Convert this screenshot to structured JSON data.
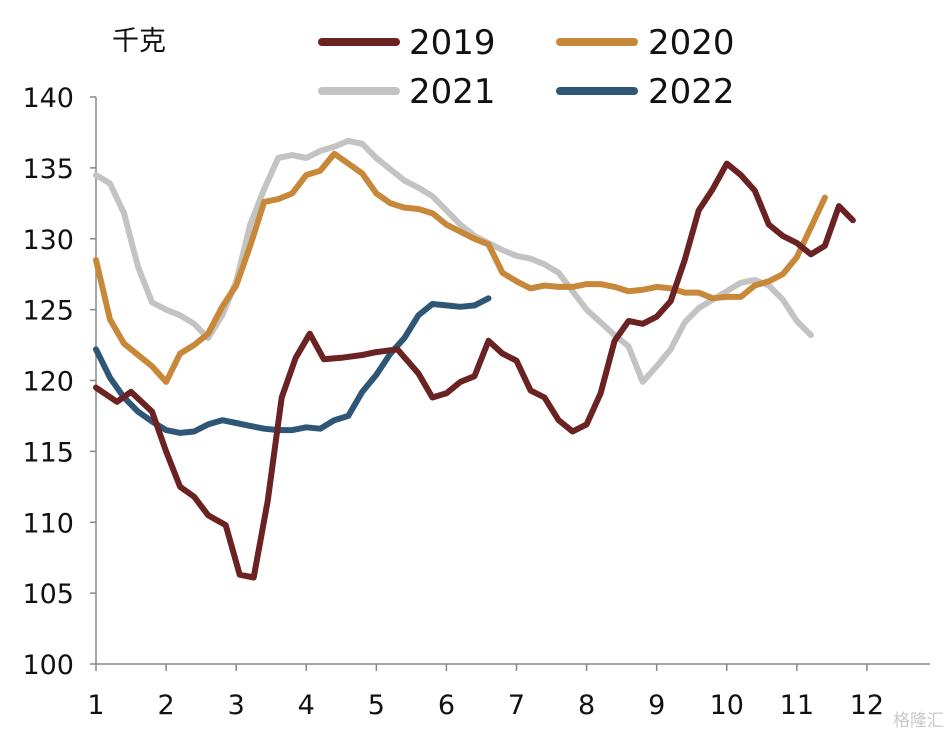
{
  "chart_data": {
    "type": "line",
    "title": "",
    "unit_label": "千克",
    "xlabel": "",
    "ylabel": "",
    "ylim": [
      100,
      140
    ],
    "xlim": [
      1,
      12.9
    ],
    "y_ticks": [
      100,
      105,
      110,
      115,
      120,
      125,
      130,
      135,
      140
    ],
    "x_ticks": [
      1,
      2,
      3,
      4,
      5,
      6,
      7,
      8,
      9,
      10,
      11,
      12
    ],
    "grid": false,
    "legend_position": "top",
    "watermark": "格隆汇",
    "series": [
      {
        "name": "2019",
        "color": "#6b2222",
        "points": [
          [
            1.0,
            119.5
          ],
          [
            1.3,
            118.5
          ],
          [
            1.5,
            119.2
          ],
          [
            1.8,
            117.8
          ],
          [
            2.0,
            115.0
          ],
          [
            2.2,
            112.5
          ],
          [
            2.4,
            111.8
          ],
          [
            2.6,
            110.5
          ],
          [
            2.85,
            109.8
          ],
          [
            3.05,
            106.3
          ],
          [
            3.25,
            106.1
          ],
          [
            3.45,
            111.5
          ],
          [
            3.65,
            118.8
          ],
          [
            3.85,
            121.6
          ],
          [
            4.05,
            123.3
          ],
          [
            4.25,
            121.5
          ],
          [
            4.5,
            121.6
          ],
          [
            4.8,
            121.8
          ],
          [
            5.0,
            122.0
          ],
          [
            5.3,
            122.2
          ],
          [
            5.6,
            120.5
          ],
          [
            5.8,
            118.8
          ],
          [
            6.0,
            119.1
          ],
          [
            6.2,
            119.9
          ],
          [
            6.4,
            120.3
          ],
          [
            6.6,
            122.8
          ],
          [
            6.8,
            121.9
          ],
          [
            7.0,
            121.4
          ],
          [
            7.2,
            119.3
          ],
          [
            7.4,
            118.8
          ],
          [
            7.6,
            117.2
          ],
          [
            7.8,
            116.4
          ],
          [
            8.0,
            116.9
          ],
          [
            8.2,
            119.1
          ],
          [
            8.4,
            122.8
          ],
          [
            8.6,
            124.2
          ],
          [
            8.8,
            124.0
          ],
          [
            9.0,
            124.5
          ],
          [
            9.2,
            125.6
          ],
          [
            9.4,
            128.5
          ],
          [
            9.6,
            132.0
          ],
          [
            9.8,
            133.5
          ],
          [
            10.0,
            135.3
          ],
          [
            10.2,
            134.5
          ],
          [
            10.4,
            133.4
          ],
          [
            10.6,
            131.0
          ],
          [
            10.8,
            130.2
          ],
          [
            11.0,
            129.7
          ],
          [
            11.2,
            128.9
          ],
          [
            11.4,
            129.5
          ],
          [
            11.6,
            132.3
          ],
          [
            11.8,
            131.3
          ]
        ]
      },
      {
        "name": "2020",
        "color": "#c8883a",
        "points": [
          [
            1.0,
            128.5
          ],
          [
            1.2,
            124.3
          ],
          [
            1.4,
            122.6
          ],
          [
            1.6,
            121.8
          ],
          [
            1.8,
            121.0
          ],
          [
            2.0,
            119.9
          ],
          [
            2.2,
            121.9
          ],
          [
            2.4,
            122.5
          ],
          [
            2.6,
            123.3
          ],
          [
            2.8,
            125.2
          ],
          [
            3.0,
            126.7
          ],
          [
            3.2,
            129.5
          ],
          [
            3.4,
            132.6
          ],
          [
            3.6,
            132.8
          ],
          [
            3.8,
            133.2
          ],
          [
            4.0,
            134.5
          ],
          [
            4.2,
            134.8
          ],
          [
            4.4,
            136.0
          ],
          [
            4.6,
            135.3
          ],
          [
            4.8,
            134.6
          ],
          [
            5.0,
            133.2
          ],
          [
            5.2,
            132.5
          ],
          [
            5.4,
            132.2
          ],
          [
            5.6,
            132.1
          ],
          [
            5.8,
            131.8
          ],
          [
            6.0,
            131.0
          ],
          [
            6.2,
            130.5
          ],
          [
            6.4,
            130.0
          ],
          [
            6.6,
            129.6
          ],
          [
            6.8,
            127.6
          ],
          [
            7.0,
            127.0
          ],
          [
            7.2,
            126.5
          ],
          [
            7.4,
            126.7
          ],
          [
            7.6,
            126.6
          ],
          [
            7.8,
            126.6
          ],
          [
            8.0,
            126.8
          ],
          [
            8.2,
            126.8
          ],
          [
            8.4,
            126.6
          ],
          [
            8.6,
            126.3
          ],
          [
            8.8,
            126.4
          ],
          [
            9.0,
            126.6
          ],
          [
            9.2,
            126.5
          ],
          [
            9.4,
            126.2
          ],
          [
            9.6,
            126.2
          ],
          [
            9.8,
            125.8
          ],
          [
            10.0,
            125.9
          ],
          [
            10.2,
            125.9
          ],
          [
            10.4,
            126.7
          ],
          [
            10.6,
            127.0
          ],
          [
            10.8,
            127.5
          ],
          [
            11.0,
            128.7
          ],
          [
            11.2,
            130.8
          ],
          [
            11.4,
            132.9
          ]
        ]
      },
      {
        "name": "2021",
        "color": "#c3c3c3",
        "points": [
          [
            1.0,
            134.5
          ],
          [
            1.2,
            133.9
          ],
          [
            1.4,
            131.8
          ],
          [
            1.6,
            128.0
          ],
          [
            1.8,
            125.5
          ],
          [
            2.0,
            125.0
          ],
          [
            2.2,
            124.6
          ],
          [
            2.4,
            124.0
          ],
          [
            2.6,
            123.0
          ],
          [
            2.8,
            124.6
          ],
          [
            3.0,
            127.0
          ],
          [
            3.2,
            131.0
          ],
          [
            3.4,
            133.5
          ],
          [
            3.6,
            135.7
          ],
          [
            3.8,
            135.9
          ],
          [
            4.0,
            135.7
          ],
          [
            4.2,
            136.2
          ],
          [
            4.4,
            136.5
          ],
          [
            4.6,
            136.9
          ],
          [
            4.8,
            136.7
          ],
          [
            5.0,
            135.7
          ],
          [
            5.2,
            134.9
          ],
          [
            5.4,
            134.1
          ],
          [
            5.6,
            133.6
          ],
          [
            5.8,
            133.0
          ],
          [
            6.0,
            132.0
          ],
          [
            6.2,
            131.0
          ],
          [
            6.4,
            130.2
          ],
          [
            6.6,
            129.7
          ],
          [
            6.8,
            129.2
          ],
          [
            7.0,
            128.8
          ],
          [
            7.2,
            128.6
          ],
          [
            7.4,
            128.2
          ],
          [
            7.6,
            127.6
          ],
          [
            7.8,
            126.3
          ],
          [
            8.0,
            125.0
          ],
          [
            8.2,
            124.1
          ],
          [
            8.4,
            123.2
          ],
          [
            8.6,
            122.4
          ],
          [
            8.8,
            119.9
          ],
          [
            9.0,
            121.0
          ],
          [
            9.2,
            122.2
          ],
          [
            9.4,
            124.1
          ],
          [
            9.6,
            125.1
          ],
          [
            9.8,
            125.7
          ],
          [
            10.0,
            126.3
          ],
          [
            10.2,
            126.9
          ],
          [
            10.4,
            127.1
          ],
          [
            10.6,
            126.7
          ],
          [
            10.8,
            125.7
          ],
          [
            11.0,
            124.2
          ],
          [
            11.2,
            123.2
          ]
        ]
      },
      {
        "name": "2022",
        "color": "#2e5777",
        "points": [
          [
            1.0,
            122.2
          ],
          [
            1.2,
            120.2
          ],
          [
            1.4,
            118.8
          ],
          [
            1.6,
            117.8
          ],
          [
            1.8,
            117.1
          ],
          [
            2.0,
            116.5
          ],
          [
            2.2,
            116.3
          ],
          [
            2.4,
            116.4
          ],
          [
            2.6,
            116.9
          ],
          [
            2.8,
            117.2
          ],
          [
            3.0,
            117.0
          ],
          [
            3.2,
            116.8
          ],
          [
            3.4,
            116.6
          ],
          [
            3.6,
            116.5
          ],
          [
            3.8,
            116.5
          ],
          [
            4.0,
            116.7
          ],
          [
            4.2,
            116.6
          ],
          [
            4.4,
            117.2
          ],
          [
            4.6,
            117.5
          ],
          [
            4.8,
            119.2
          ],
          [
            5.0,
            120.4
          ],
          [
            5.2,
            121.9
          ],
          [
            5.4,
            123.0
          ],
          [
            5.6,
            124.6
          ],
          [
            5.8,
            125.4
          ],
          [
            6.0,
            125.3
          ],
          [
            6.2,
            125.2
          ],
          [
            6.4,
            125.3
          ],
          [
            6.6,
            125.8
          ]
        ]
      }
    ]
  }
}
